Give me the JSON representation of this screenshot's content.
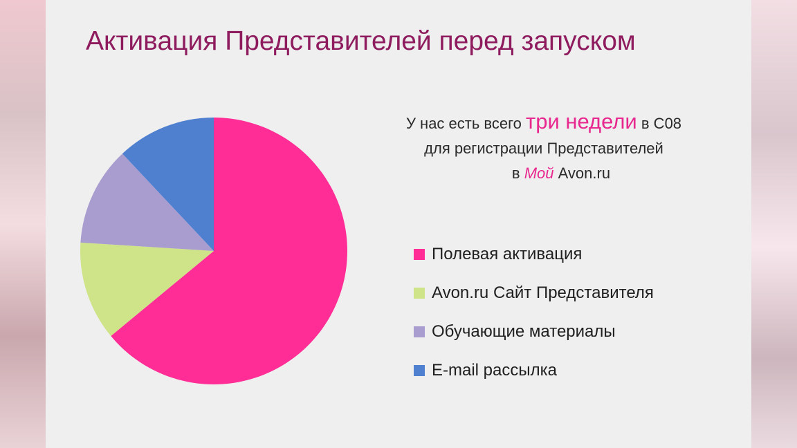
{
  "title": "Активация Представителей перед запуском",
  "subtitle": {
    "part1": "У нас есть всего ",
    "highlight": "три недели",
    "part2": " в C08",
    "line2": "для регистрации Представителей",
    "line3_prefix": "в ",
    "line3_italic": "Мой",
    "line3_suffix": " Avon.ru"
  },
  "chart_data": {
    "type": "pie",
    "title": "",
    "series": [
      {
        "name": "Полевая активация",
        "value": 64,
        "color": "#ff2d95"
      },
      {
        "name": "Avon.ru Сайт Представителя",
        "value": 12,
        "color": "#cfe388"
      },
      {
        "name": "Обучающие материалы",
        "value": 12,
        "color": "#a99dd0"
      },
      {
        "name": "E-mail рассылка",
        "value": 12,
        "color": "#4f7fcf"
      }
    ],
    "legend_placement": "right"
  }
}
